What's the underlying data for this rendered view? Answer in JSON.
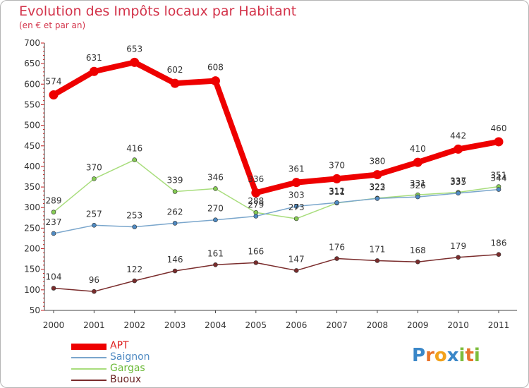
{
  "title": "Evolution des Impôts locaux par Habitant",
  "subtitle": "(en € et par an)",
  "logo": {
    "text": "Proxiti",
    "letters": [
      "P",
      "r",
      "o",
      "x",
      "i",
      "t",
      "i"
    ],
    "colors": [
      "#3a87c8",
      "#e8732a",
      "#f2a21c",
      "#3a87c8",
      "#7cbd3c",
      "#e8732a",
      "#7cbd3c"
    ]
  },
  "chart_data": {
    "type": "line",
    "title": "Evolution des Impôts locaux par Habitant",
    "subtitle": "(en € et par an)",
    "xlabel": "",
    "ylabel": "",
    "ylim": [
      50,
      700
    ],
    "yticks": [
      "50",
      "100",
      "150",
      "200",
      "250",
      "300",
      "350",
      "400",
      "450",
      "500",
      "550",
      "600",
      "650",
      "700"
    ],
    "categories": [
      "2000",
      "2001",
      "2002",
      "2003",
      "2004",
      "2005",
      "2006",
      "2007",
      "2008",
      "2009",
      "2010",
      "2011"
    ],
    "series": [
      {
        "name": "APT",
        "color": "#ee0000",
        "marker": "#ee0000",
        "values": [
          574,
          631,
          653,
          602,
          608,
          336,
          361,
          370,
          380,
          410,
          442,
          460
        ],
        "labels": [
          "574",
          "631",
          "653",
          "602",
          "608",
          "336",
          "361",
          "370",
          "380",
          "410",
          "442",
          "460"
        ]
      },
      {
        "name": "Saignon",
        "color": "#7aa6cc",
        "marker": "#4f8ac2",
        "values": [
          237,
          257,
          253,
          262,
          270,
          279,
          303,
          312,
          322,
          326,
          335,
          344
        ],
        "labels": [
          "237",
          "257",
          "253",
          "262",
          "270",
          "279",
          "303",
          "312",
          "322",
          "326",
          "335",
          "344"
        ]
      },
      {
        "name": "Gargas",
        "color": "#a8dd7c",
        "marker": "#86cc54",
        "values": [
          289,
          370,
          416,
          339,
          346,
          288,
          273,
          311,
          323,
          331,
          337,
          351
        ],
        "labels": [
          "289",
          "370",
          "416",
          "339",
          "346",
          "288",
          "273",
          "311",
          "323",
          "331",
          "337",
          "351"
        ]
      },
      {
        "name": "Buoux",
        "color": "#7a2c2c",
        "marker": "#7a2c2c",
        "values": [
          104,
          96,
          122,
          146,
          161,
          166,
          147,
          176,
          171,
          168,
          179,
          186
        ],
        "labels": [
          "104",
          "96",
          "122",
          "146",
          "161",
          "166",
          "147",
          "176",
          "171",
          "168",
          "179",
          "186"
        ]
      }
    ],
    "legend_position": "bottom-left",
    "grid": false
  }
}
